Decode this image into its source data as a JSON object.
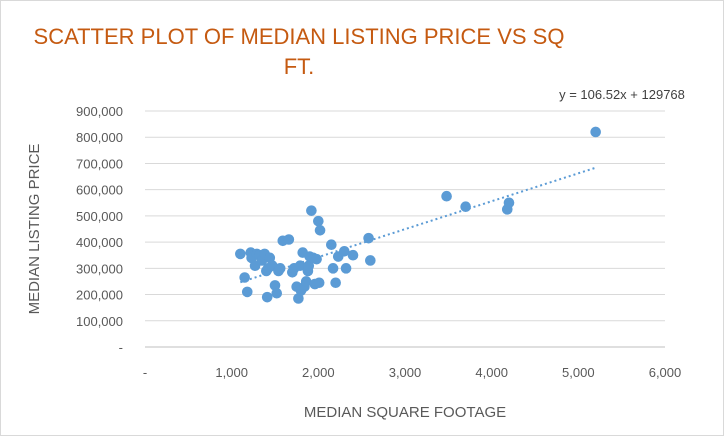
{
  "chart_data": {
    "type": "scatter",
    "title_lines": [
      "SCATTER PLOT OF MEDIAN LISTING PRICE VS SQ",
      "FT."
    ],
    "xlabel": "MEDIAN SQUARE FOOTAGE",
    "ylabel": "MEDIAN LISTING PRICE",
    "xlim": [
      0,
      6000
    ],
    "ylim": [
      0,
      900000
    ],
    "x_ticks": [
      0,
      1000,
      2000,
      3000,
      4000,
      5000,
      6000
    ],
    "x_tick_labels": [
      "-",
      "1,000",
      "2,000",
      "3,000",
      "4,000",
      "5,000",
      "6,000"
    ],
    "y_ticks": [
      0,
      100000,
      200000,
      300000,
      400000,
      500000,
      600000,
      700000,
      800000,
      900000
    ],
    "y_tick_labels": [
      "-",
      "100,000",
      "200,000",
      "300,000",
      "400,000",
      "500,000",
      "600,000",
      "700,000",
      "800,000",
      "900,000"
    ],
    "grid": true,
    "marker_color": "#5b9bd5",
    "trendline": {
      "type": "linear",
      "slope": 106.52,
      "intercept": 129768,
      "x_range": [
        1100,
        5200
      ],
      "equation_label": "y = 106.52x + 129768",
      "color": "#5b9bd5"
    },
    "points": [
      {
        "x": 1100,
        "y": 355000
      },
      {
        "x": 1150,
        "y": 265000
      },
      {
        "x": 1180,
        "y": 210000
      },
      {
        "x": 1220,
        "y": 360000
      },
      {
        "x": 1230,
        "y": 340000
      },
      {
        "x": 1270,
        "y": 310000
      },
      {
        "x": 1290,
        "y": 355000
      },
      {
        "x": 1320,
        "y": 350000
      },
      {
        "x": 1350,
        "y": 330000
      },
      {
        "x": 1380,
        "y": 355000
      },
      {
        "x": 1400,
        "y": 290000
      },
      {
        "x": 1410,
        "y": 190000
      },
      {
        "x": 1420,
        "y": 300000
      },
      {
        "x": 1440,
        "y": 340000
      },
      {
        "x": 1470,
        "y": 310000
      },
      {
        "x": 1500,
        "y": 235000
      },
      {
        "x": 1520,
        "y": 205000
      },
      {
        "x": 1540,
        "y": 290000
      },
      {
        "x": 1560,
        "y": 300000
      },
      {
        "x": 1590,
        "y": 405000
      },
      {
        "x": 1660,
        "y": 410000
      },
      {
        "x": 1700,
        "y": 285000
      },
      {
        "x": 1720,
        "y": 300000
      },
      {
        "x": 1750,
        "y": 230000
      },
      {
        "x": 1770,
        "y": 185000
      },
      {
        "x": 1790,
        "y": 310000
      },
      {
        "x": 1800,
        "y": 215000
      },
      {
        "x": 1820,
        "y": 360000
      },
      {
        "x": 1840,
        "y": 230000
      },
      {
        "x": 1860,
        "y": 250000
      },
      {
        "x": 1880,
        "y": 290000
      },
      {
        "x": 1890,
        "y": 310000
      },
      {
        "x": 1900,
        "y": 345000
      },
      {
        "x": 1920,
        "y": 520000
      },
      {
        "x": 1940,
        "y": 340000
      },
      {
        "x": 1960,
        "y": 240000
      },
      {
        "x": 1980,
        "y": 335000
      },
      {
        "x": 2000,
        "y": 480000
      },
      {
        "x": 2010,
        "y": 245000
      },
      {
        "x": 2020,
        "y": 445000
      },
      {
        "x": 2150,
        "y": 390000
      },
      {
        "x": 2170,
        "y": 300000
      },
      {
        "x": 2200,
        "y": 245000
      },
      {
        "x": 2230,
        "y": 345000
      },
      {
        "x": 2300,
        "y": 365000
      },
      {
        "x": 2320,
        "y": 300000
      },
      {
        "x": 2400,
        "y": 350000
      },
      {
        "x": 2580,
        "y": 415000
      },
      {
        "x": 2600,
        "y": 330000
      },
      {
        "x": 3480,
        "y": 575000
      },
      {
        "x": 3700,
        "y": 535000
      },
      {
        "x": 4180,
        "y": 525000
      },
      {
        "x": 4200,
        "y": 550000
      },
      {
        "x": 5200,
        "y": 820000
      }
    ]
  }
}
